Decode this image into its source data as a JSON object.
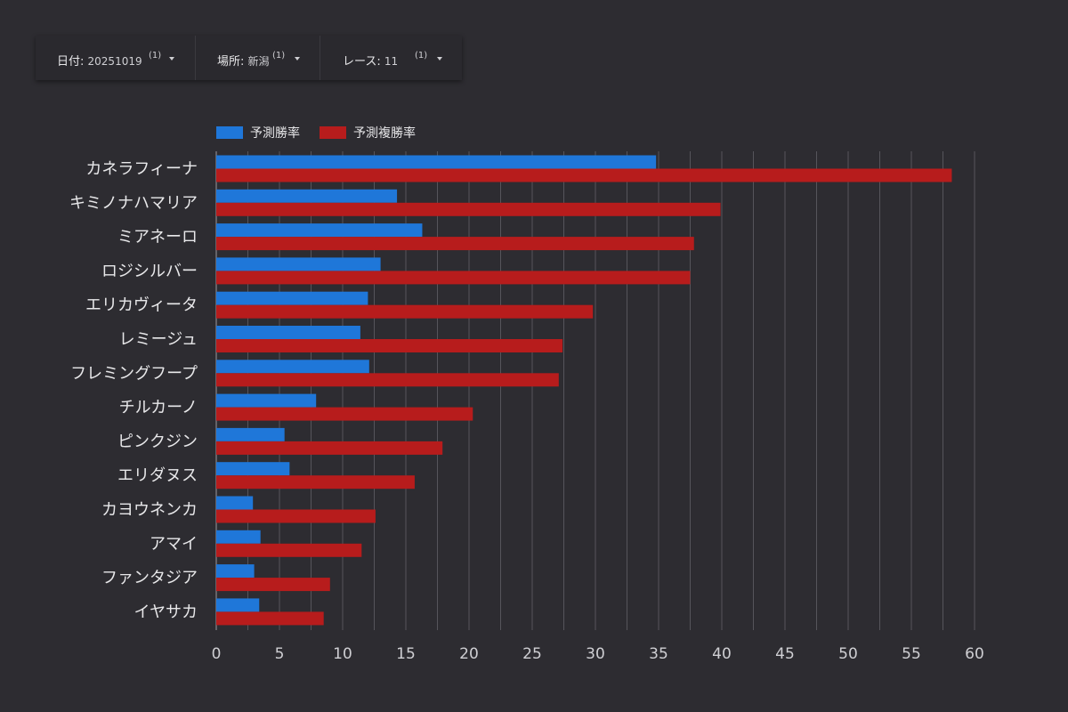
{
  "filters": [
    {
      "label": "日付",
      "value": "20251019",
      "count": "(1)"
    },
    {
      "label": "場所",
      "value": "新潟",
      "count": "(1)"
    },
    {
      "label": "レース",
      "value": "11",
      "count": "(1)"
    }
  ],
  "colors": {
    "background": "#2d2c31",
    "series_win": "#1f77d9",
    "series_place": "#b71c1c",
    "grid": "#56555b"
  },
  "chart_data": {
    "type": "bar",
    "orientation": "horizontal",
    "categories": [
      "カネラフィーナ",
      "キミノナハマリア",
      "ミアネーロ",
      "ロジシルバー",
      "エリカヴィータ",
      "レミージュ",
      "フレミングフープ",
      "チルカーノ",
      "ピンクジン",
      "エリダヌス",
      "カヨウネンカ",
      "アマイ",
      "ファンタジア",
      "イヤサカ"
    ],
    "series": [
      {
        "name": "予測勝率",
        "values": [
          34.8,
          14.3,
          16.3,
          13.0,
          12.0,
          11.4,
          12.1,
          7.9,
          5.4,
          5.8,
          2.9,
          3.5,
          3.0,
          3.4
        ]
      },
      {
        "name": "予測複勝率",
        "values": [
          58.2,
          39.9,
          37.8,
          37.5,
          29.8,
          27.4,
          27.1,
          20.3,
          17.9,
          15.7,
          12.6,
          11.5,
          9.0,
          8.5
        ]
      }
    ],
    "x_ticks": [
      "0",
      "5",
      "10",
      "15",
      "20",
      "25",
      "30",
      "35",
      "40",
      "45",
      "50",
      "55",
      "60"
    ],
    "xlim": [
      0,
      60
    ],
    "grid": "vertical",
    "legend_position": "top-left"
  }
}
